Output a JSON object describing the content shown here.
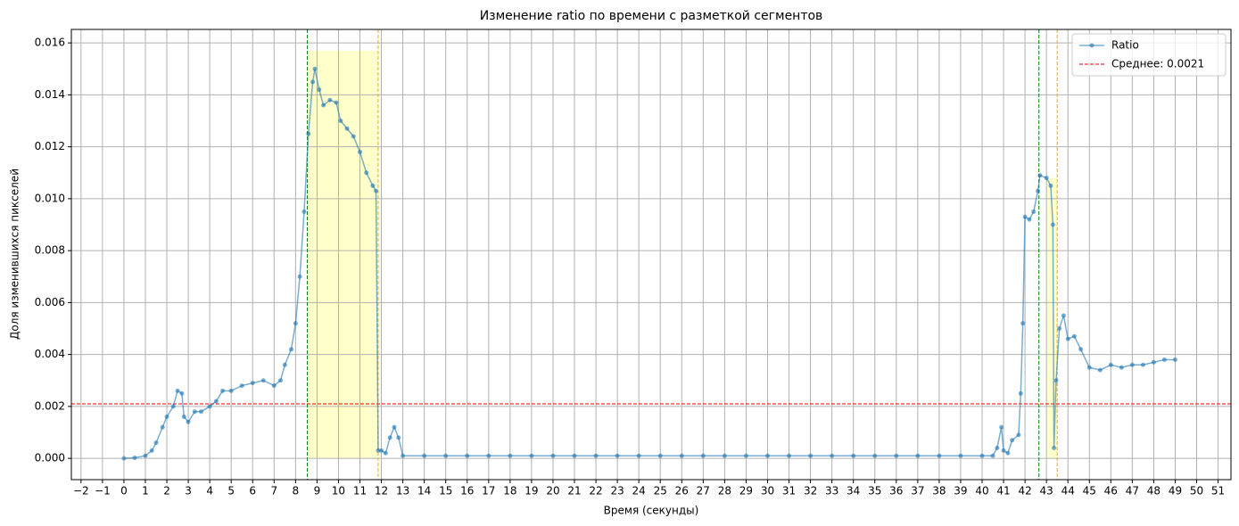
{
  "chart_data": {
    "type": "line",
    "title": "Изменение ratio по времени с разметкой сегментов",
    "x_label": "Время (секунды)",
    "y_label": "Доля изменившихся пикселей",
    "x": [
      0,
      0.5,
      1.0,
      1.3,
      1.5,
      1.8,
      2.0,
      2.3,
      2.5,
      2.7,
      2.8,
      3.0,
      3.3,
      3.6,
      4.0,
      4.3,
      4.6,
      5.0,
      5.5,
      6.0,
      6.5,
      7.0,
      7.3,
      7.5,
      7.8,
      8.0,
      8.2,
      8.4,
      8.6,
      8.8,
      8.9,
      9.1,
      9.3,
      9.6,
      9.9,
      10.1,
      10.4,
      10.7,
      11.0,
      11.3,
      11.6,
      11.75,
      11.85,
      12.0,
      12.2,
      12.4,
      12.6,
      12.8,
      13,
      14,
      15,
      16,
      17,
      18,
      19,
      20,
      21,
      22,
      23,
      24,
      25,
      26,
      27,
      28,
      29,
      30,
      31,
      32,
      33,
      34,
      35,
      36,
      37,
      38,
      39,
      40,
      40.5,
      40.7,
      40.9,
      41.0,
      41.2,
      41.4,
      41.7,
      41.8,
      41.9,
      42.0,
      42.2,
      42.4,
      42.6,
      42.7,
      43.0,
      43.2,
      43.3,
      43.35,
      43.45,
      43.6,
      43.8,
      44.0,
      44.3,
      44.6,
      45.0,
      45.5,
      46.0,
      46.5,
      47.0,
      47.5,
      48.0,
      48.5,
      49.0
    ],
    "series": [
      {
        "name": "Ratio",
        "color": "#1f77b4",
        "values": [
          0,
          2e-05,
          0.0001,
          0.0003,
          0.0006,
          0.0012,
          0.0016,
          0.002,
          0.0026,
          0.0025,
          0.0016,
          0.0014,
          0.0018,
          0.0018,
          0.002,
          0.0022,
          0.0026,
          0.0026,
          0.0028,
          0.0029,
          0.003,
          0.0028,
          0.003,
          0.0036,
          0.0042,
          0.0052,
          0.007,
          0.0095,
          0.0125,
          0.0145,
          0.015,
          0.0142,
          0.0136,
          0.0138,
          0.0137,
          0.013,
          0.0127,
          0.0124,
          0.0118,
          0.011,
          0.0105,
          0.0103,
          0.0003,
          0.0003,
          0.0002,
          0.0008,
          0.0012,
          0.0008,
          0.0001,
          0.0001,
          0.0001,
          0.0001,
          0.0001,
          0.0001,
          0.0001,
          0.0001,
          0.0001,
          0.0001,
          0.0001,
          0.0001,
          0.0001,
          0.0001,
          0.0001,
          0.0001,
          0.0001,
          0.0001,
          0.0001,
          0.0001,
          0.0001,
          0.0001,
          0.0001,
          0.0001,
          0.0001,
          0.0001,
          0.0001,
          0.0001,
          0.0001,
          0.0004,
          0.0012,
          0.0003,
          0.0002,
          0.0007,
          0.0009,
          0.0025,
          0.0052,
          0.0093,
          0.0092,
          0.0095,
          0.0103,
          0.0109,
          0.0108,
          0.0105,
          0.009,
          0.0004,
          0.003,
          0.005,
          0.0055,
          0.0046,
          0.0047,
          0.0042,
          0.0035,
          0.0034,
          0.0036,
          0.0035,
          0.0036,
          0.0036,
          0.0037,
          0.0038,
          0.0038
        ]
      }
    ],
    "hlines": [
      {
        "value": 0.0021,
        "color": "#ff0000",
        "name": "Среднее: 0.0021"
      }
    ],
    "vlines": [
      {
        "value": 8.55,
        "color": "#008000"
      },
      {
        "value": 11.85,
        "color": "#ffa500"
      },
      {
        "value": 42.65,
        "color": "#008000"
      },
      {
        "value": 43.5,
        "color": "#ffa500"
      }
    ],
    "spans": [
      {
        "x": [
          8.55,
          11.85
        ],
        "top": 0.0157
      },
      {
        "x": [
          43.0,
          43.5
        ],
        "top": 0.0108
      }
    ],
    "xlim": [
      -2.45,
      51.6
    ],
    "ylim": [
      -0.00082,
      0.01652
    ],
    "xticks": [
      {
        "value": -2,
        "label": "−2"
      },
      {
        "value": -1,
        "label": "−1"
      },
      0,
      1,
      2,
      3,
      4,
      5,
      6,
      7,
      8,
      9,
      10,
      11,
      12,
      13,
      14,
      15,
      16,
      17,
      18,
      19,
      20,
      21,
      22,
      23,
      24,
      25,
      26,
      27,
      28,
      29,
      30,
      31,
      32,
      33,
      34,
      35,
      36,
      37,
      38,
      39,
      40,
      41,
      42,
      43,
      44,
      45,
      46,
      47,
      48,
      49,
      50,
      51
    ],
    "yticks": [
      {
        "value": 0,
        "label": "0.000"
      },
      {
        "value": 0.002,
        "label": "0.002"
      },
      {
        "value": 0.004,
        "label": "0.004"
      },
      {
        "value": 0.006,
        "label": "0.006"
      },
      {
        "value": 0.008,
        "label": "0.008"
      },
      {
        "value": 0.01,
        "label": "0.010"
      },
      {
        "value": 0.012,
        "label": "0.012"
      },
      {
        "value": 0.014,
        "label": "0.014"
      },
      {
        "value": 0.016,
        "label": "0.016"
      }
    ],
    "grid": true,
    "legend": "upper-right"
  }
}
